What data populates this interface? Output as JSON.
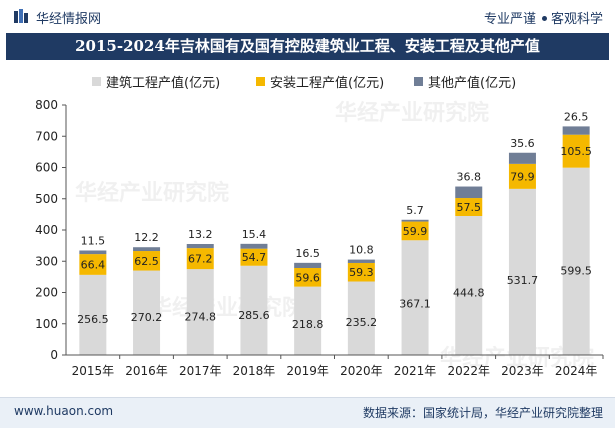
{
  "header": {
    "logo_text": "华经情报网",
    "slogan_left": "专业严谨",
    "slogan_right": "客观科学"
  },
  "footer": {
    "website": "www.huaon.com",
    "source": "数据来源：国家统计局，华经产业研究院整理"
  },
  "watermark": "华经产业研究院",
  "colors": {
    "construction": "#d9d9d9",
    "installation": "#f5b800",
    "other": "#707e96",
    "banner": "#1f3a63"
  },
  "chart_data": {
    "type": "bar",
    "stacked": true,
    "title": "2015-2024年吉林国有及国有控股建筑业工程、安装工程及其他产值",
    "categories": [
      "2015年",
      "2016年",
      "2017年",
      "2018年",
      "2019年",
      "2020年",
      "2021年",
      "2022年",
      "2023年",
      "2024年"
    ],
    "series": [
      {
        "name": "建筑工程产值(亿元)",
        "values": [
          256.5,
          270.2,
          274.8,
          285.6,
          218.8,
          235.2,
          367.1,
          444.8,
          531.7,
          599.5
        ]
      },
      {
        "name": "安装工程产值(亿元)",
        "values": [
          66.4,
          62.5,
          67.2,
          54.7,
          59.6,
          59.3,
          59.9,
          57.5,
          79.9,
          105.5
        ]
      },
      {
        "name": "其他产值(亿元)",
        "values": [
          11.5,
          12.2,
          13.2,
          15.4,
          16.5,
          10.8,
          5.7,
          36.8,
          35.6,
          26.5
        ]
      }
    ],
    "yticks": [
      0,
      100,
      200,
      300,
      400,
      500,
      600,
      700,
      800
    ],
    "ylim": [
      0,
      800
    ],
    "legend_position": "top",
    "grid": false
  }
}
